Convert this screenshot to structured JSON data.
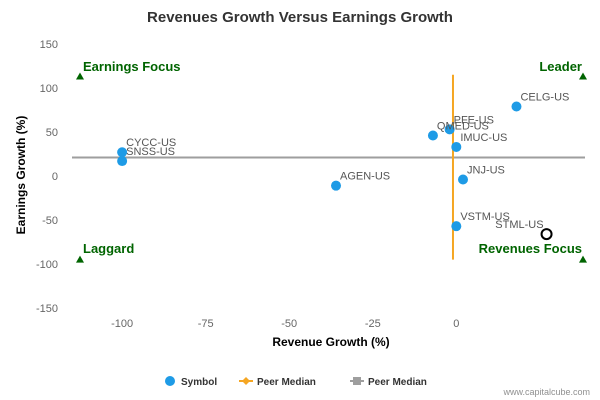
{
  "chart_data": {
    "type": "scatter",
    "title": "Revenues Growth Versus Earnings Growth",
    "xlabel": "Revenue Growth (%)",
    "ylabel": "Earnings Growth (%)",
    "xlim": [
      -115,
      40
    ],
    "ylim": [
      -150,
      150
    ],
    "x_ticks": [
      -100,
      -75,
      -50,
      -25,
      0
    ],
    "y_ticks": [
      150,
      100,
      50,
      0,
      -50,
      -100,
      -150
    ],
    "grid": false,
    "series": [
      {
        "name": "Symbol",
        "color": "#1e9be6",
        "points": [
          {
            "label": "CELG-US",
            "x": 18,
            "y": 79
          },
          {
            "label": "PFE-US",
            "x": -2,
            "y": 53
          },
          {
            "label": "QMED-US",
            "x": -7,
            "y": 46
          },
          {
            "label": "IMUC-US",
            "x": 0,
            "y": 33
          },
          {
            "label": "CYCC-US",
            "x": -100,
            "y": 27
          },
          {
            "label": "SNSS-US",
            "x": -100,
            "y": 17
          },
          {
            "label": "JNJ-US",
            "x": 2,
            "y": -4
          },
          {
            "label": "AGEN-US",
            "x": -36,
            "y": -11
          },
          {
            "label": "VSTM-US",
            "x": 0,
            "y": -57
          }
        ]
      }
    ],
    "highlight_point": {
      "label": "STML-US",
      "x": 27,
      "y": -66
    },
    "peer_median_x": {
      "name": "Peer Median",
      "value": -1,
      "color": "#f5a623",
      "y_range": [
        -95,
        115
      ]
    },
    "peer_median_y": {
      "name": "Peer Median",
      "value": 21,
      "color": "#9e9e9e"
    },
    "quadrants": {
      "top_left": "Earnings Focus",
      "top_right": "Leader",
      "bottom_left": "Laggard",
      "bottom_right": "Revenues Focus",
      "marker_color": "#006400",
      "marker_y_top": 113,
      "marker_y_bottom": -95
    },
    "legend": {
      "position": "bottom",
      "items": [
        {
          "label": "Symbol",
          "symbol": "circle",
          "color": "#1e9be6"
        },
        {
          "label": "Peer Median",
          "symbol": "line-diamond",
          "color": "#f5a623"
        },
        {
          "label": "Peer Median",
          "symbol": "line-square",
          "color": "#9e9e9e"
        }
      ]
    },
    "credit": "www.capitalcube.com"
  }
}
